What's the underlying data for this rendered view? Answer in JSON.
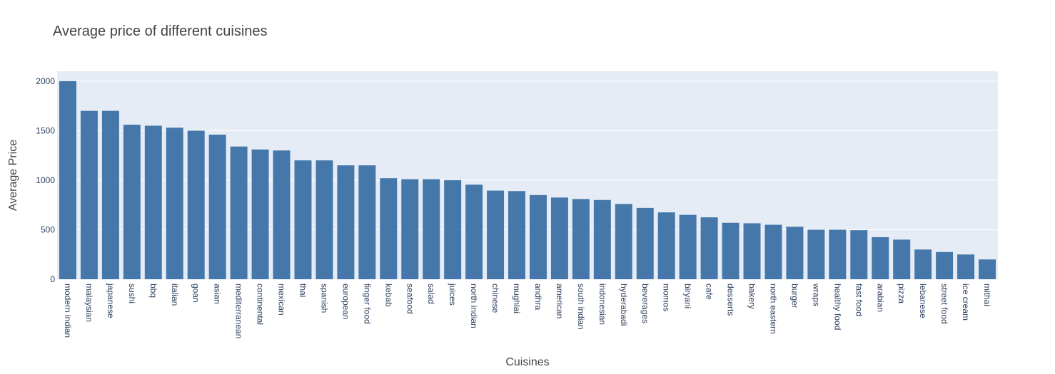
{
  "chart_data": {
    "type": "bar",
    "title": "Average price of different cuisines",
    "xlabel": "Cuisines",
    "ylabel": "Average Price",
    "ylim": [
      0,
      2100
    ],
    "yticks": [
      0,
      500,
      1000,
      1500,
      2000
    ],
    "grid": true,
    "legend": "none",
    "bar_color": "#4577aa",
    "plot_bg": "#e5ecf6",
    "categories": [
      "modern indian",
      "malaysian",
      "japanese",
      "sushi",
      "bbq",
      "italian",
      "goan",
      "asian",
      "mediterranean",
      "continental",
      "mexican",
      "thai",
      "spanish",
      "european",
      "finger food",
      "kebab",
      "seafood",
      "salad",
      "juices",
      "north indian",
      "chinese",
      "mughlai",
      "andhra",
      "american",
      "south indian",
      "indonesian",
      "hyderabadi",
      "beverages",
      "momos",
      "biryani",
      "cafe",
      "desserts",
      "bakery",
      "north eastern",
      "burger",
      "wraps",
      "healthy food",
      "fast food",
      "arabian",
      "pizza",
      "lebanese",
      "street food",
      "ice cream",
      "mithai"
    ],
    "values": [
      2000,
      1700,
      1700,
      1560,
      1550,
      1530,
      1500,
      1460,
      1340,
      1310,
      1300,
      1200,
      1200,
      1150,
      1150,
      1020,
      1010,
      1010,
      1000,
      955,
      895,
      890,
      850,
      825,
      810,
      800,
      760,
      720,
      675,
      650,
      625,
      570,
      565,
      550,
      530,
      500,
      500,
      495,
      425,
      400,
      300,
      275,
      250,
      200
    ]
  }
}
